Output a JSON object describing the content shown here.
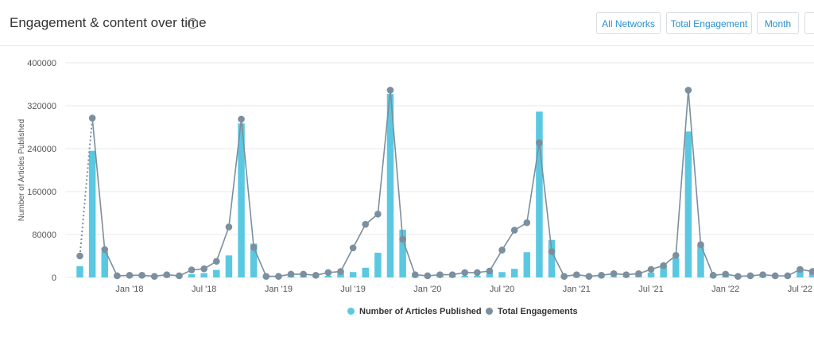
{
  "header": {
    "title": "Engagement & content over time",
    "info_icon": "info-icon",
    "buttons": {
      "networks": "All Networks",
      "metric": "Total Engagement",
      "period": "Month",
      "extra": ""
    }
  },
  "colors": {
    "bars": "#5bc8e2",
    "line": "#7b8f9e",
    "grid": "#e8e8e8"
  },
  "chart_data": {
    "type": "bar",
    "title": "",
    "xlabel": "",
    "ylabel": "Number of Articles Published",
    "ylim": [
      0,
      400000
    ],
    "yticks": [
      "400000",
      "320000",
      "240000",
      "160000",
      "80000",
      "0"
    ],
    "ytick_values": [
      400000,
      320000,
      240000,
      160000,
      80000,
      0
    ],
    "xtick_labels": [
      "Jan '18",
      "Jul '18",
      "Jan '19",
      "Jul '19",
      "Jan '20",
      "Jul '20",
      "Jan '21",
      "Jul '21",
      "Jan '22",
      "Jul '22"
    ],
    "xtick_months": [
      4,
      10,
      16,
      22,
      28,
      34,
      40,
      46,
      52,
      58
    ],
    "grid": true,
    "legend_position": "bottom",
    "x": [
      "Sep '17",
      "Oct '17",
      "Nov '17",
      "Dec '17",
      "Jan '18",
      "Feb '18",
      "Mar '18",
      "Apr '18",
      "May '18",
      "Jun '18",
      "Jul '18",
      "Aug '18",
      "Sep '18",
      "Oct '18",
      "Nov '18",
      "Dec '18",
      "Jan '19",
      "Feb '19",
      "Mar '19",
      "Apr '19",
      "May '19",
      "Jun '19",
      "Jul '19",
      "Aug '19",
      "Sep '19",
      "Oct '19",
      "Nov '19",
      "Dec '19",
      "Jan '20",
      "Feb '20",
      "Mar '20",
      "Apr '20",
      "May '20",
      "Jun '20",
      "Jul '20",
      "Aug '20",
      "Sep '20",
      "Oct '20",
      "Nov '20",
      "Dec '20",
      "Jan '21",
      "Feb '21",
      "Mar '21",
      "Apr '21",
      "May '21",
      "Jun '21",
      "Jul '21",
      "Aug '21",
      "Sep '21",
      "Oct '21",
      "Nov '21",
      "Dec '21",
      "Jan '22",
      "Feb '22",
      "Mar '22",
      "Apr '22",
      "May '22",
      "Jun '22",
      "Jul '22",
      "Aug '22"
    ],
    "series": [
      {
        "name": "Number of Articles Published",
        "type": "bar",
        "values": [
          21000,
          236000,
          48000,
          3000,
          3000,
          3000,
          3000,
          3000,
          3000,
          6000,
          8000,
          14000,
          41000,
          287000,
          63000,
          3000,
          3000,
          3000,
          3000,
          3000,
          3000,
          8000,
          10000,
          18000,
          46000,
          342000,
          89000,
          3000,
          3000,
          3000,
          3000,
          3000,
          3000,
          9000,
          10000,
          16000,
          47000,
          309000,
          70000,
          2000,
          2000,
          2000,
          2000,
          2000,
          2000,
          5000,
          9000,
          20000,
          36000,
          272000,
          59000,
          3000,
          3000,
          3000,
          3000,
          3000,
          3000,
          3000,
          14000,
          8000
        ]
      },
      {
        "name": "Total Engagements",
        "type": "line",
        "values": [
          40000,
          297000,
          52000,
          3000,
          4000,
          4000,
          2000,
          5000,
          3000,
          14000,
          16000,
          30000,
          94000,
          295000,
          56000,
          2000,
          2000,
          6000,
          6000,
          4000,
          9000,
          11000,
          55000,
          99000,
          118000,
          349000,
          71000,
          5000,
          3000,
          5000,
          5000,
          9000,
          9000,
          12000,
          51000,
          88000,
          102000,
          251000,
          48000,
          2000,
          5000,
          2000,
          4000,
          7000,
          5000,
          7000,
          15000,
          22000,
          41000,
          349000,
          61000,
          4000,
          6000,
          2000,
          3000,
          5000,
          3000,
          3000,
          15000,
          11000
        ]
      }
    ]
  }
}
